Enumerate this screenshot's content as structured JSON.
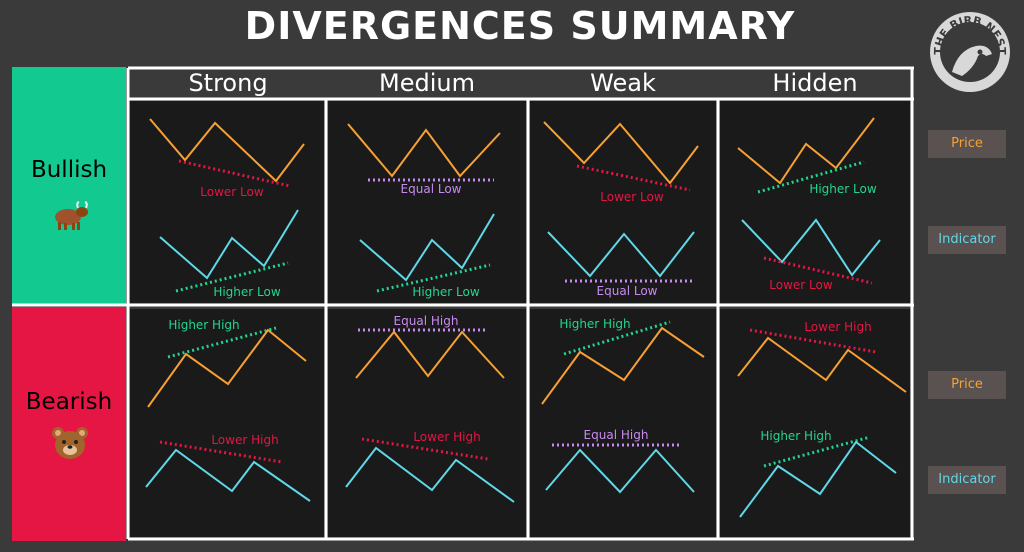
{
  "title": "DIVERGENCES SUMMARY",
  "logo_text": "THE BIRB NEST",
  "columns": [
    "Strong",
    "Medium",
    "Weak",
    "Hidden"
  ],
  "rows": [
    {
      "label": "Bullish",
      "icon": "bull-emoji"
    },
    {
      "label": "Bearish",
      "icon": "bear-emoji"
    }
  ],
  "legend": [
    {
      "label": "Price",
      "color": "#f7a034"
    },
    {
      "label": "Indicator",
      "color": "#5fd8e8"
    },
    {
      "label": "Price",
      "color": "#f7a034"
    },
    {
      "label": "Indicator",
      "color": "#5fd8e8"
    }
  ],
  "colors": {
    "price": "#f7a034",
    "indicator": "#5fd8e8",
    "lower": "#e51643",
    "higher": "#22d68f",
    "equal": "#c98af0",
    "bullish_bg": "#12c98f",
    "bearish_bg": "#e51643"
  },
  "cells": {
    "bull_strong": {
      "price_label": "Lower Low",
      "indicator_label": "Higher Low"
    },
    "bull_medium": {
      "price_label": "Equal Low",
      "indicator_label": "Higher Low"
    },
    "bull_weak": {
      "price_label": "Lower Low",
      "indicator_label": "Equal Low"
    },
    "bull_hidden": {
      "price_label": "Higher Low",
      "indicator_label": "Lower Low"
    },
    "bear_strong": {
      "price_label": "Higher High",
      "indicator_label": "Lower High"
    },
    "bear_medium": {
      "price_label": "Equal High",
      "indicator_label": "Lower High"
    },
    "bear_weak": {
      "price_label": "Higher High",
      "indicator_label": "Equal High"
    },
    "bear_hidden": {
      "price_label": "Lower High",
      "indicator_label": "Higher High"
    }
  }
}
